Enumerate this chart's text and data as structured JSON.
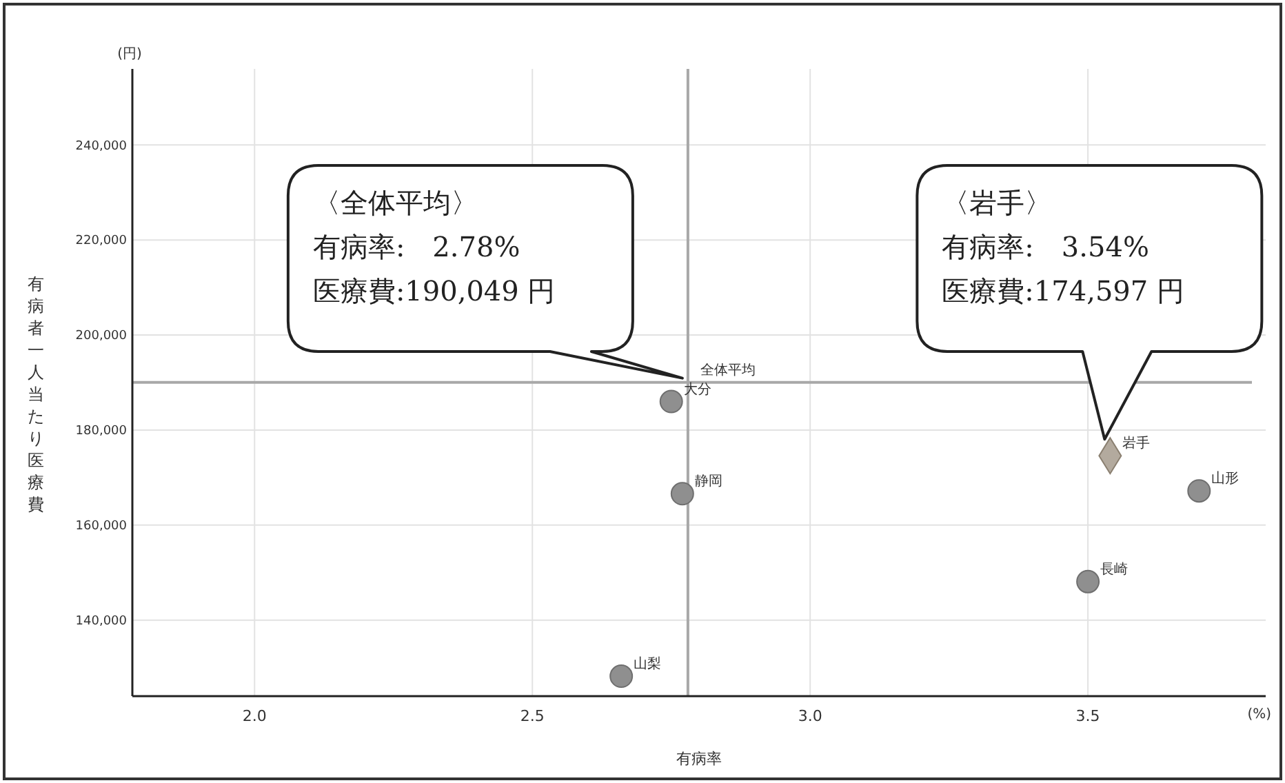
{
  "chart_data": {
    "type": "scatter",
    "xlabel": "有病率",
    "ylabel": "有病者一人当たり医療費",
    "xlim": [
      1.78,
      3.82
    ],
    "ylim": [
      124000,
      256000
    ],
    "xticks": [
      {
        "value": 2,
        "label": "2.0"
      },
      {
        "value": 2.5,
        "label": "2.5"
      },
      {
        "value": 3,
        "label": "3.0"
      },
      {
        "value": 3.5,
        "label": "3.5"
      }
    ],
    "yticks": [
      {
        "value": 140000,
        "label": "140,000"
      },
      {
        "value": 160000,
        "label": "160,000"
      },
      {
        "value": 180000,
        "label": "180,000"
      },
      {
        "value": 200000,
        "label": "200,000"
      },
      {
        "value": 220000,
        "label": "220,000"
      },
      {
        "value": 240000,
        "label": "240,000"
      }
    ],
    "grid": true,
    "series": [
      {
        "marker": "circle",
        "color": "#8f8f8f",
        "x": [
          2.75,
          2.77,
          3.7,
          3.5,
          2.66
        ],
        "values": [
          186000,
          166600,
          167200,
          148100,
          128200
        ]
      },
      {
        "marker": "diamond",
        "color": "#b3aa9e",
        "x": [
          3.54
        ],
        "values": [
          174597
        ]
      }
    ],
    "ref_lines": [
      {
        "axis": "x",
        "value": 2.78,
        "color": "#a8a8a8"
      },
      {
        "axis": "y",
        "value": 190049,
        "color": "#a8a8a8"
      }
    ],
    "annotations": [
      "(円)",
      "(%)",
      "〈全体平均〉",
      "有病率:　2.78%",
      "医療費:190,049 円",
      "〈岩手〉",
      "有病率:　3.54%",
      "医療費:174,597 円",
      {
        "text": "全体平均",
        "x": 2.78,
        "y": 190049
      },
      {
        "text": "大分",
        "x": 2.75,
        "y": 186000
      },
      {
        "text": "静岡",
        "x": 2.77,
        "y": 166600
      },
      {
        "text": "岩手",
        "x": 3.54,
        "y": 174597
      },
      {
        "text": "山形",
        "x": 3.7,
        "y": 167200
      },
      {
        "text": "長崎",
        "x": 3.5,
        "y": 148100
      },
      {
        "text": "山梨",
        "x": 2.66,
        "y": 128200
      }
    ]
  }
}
